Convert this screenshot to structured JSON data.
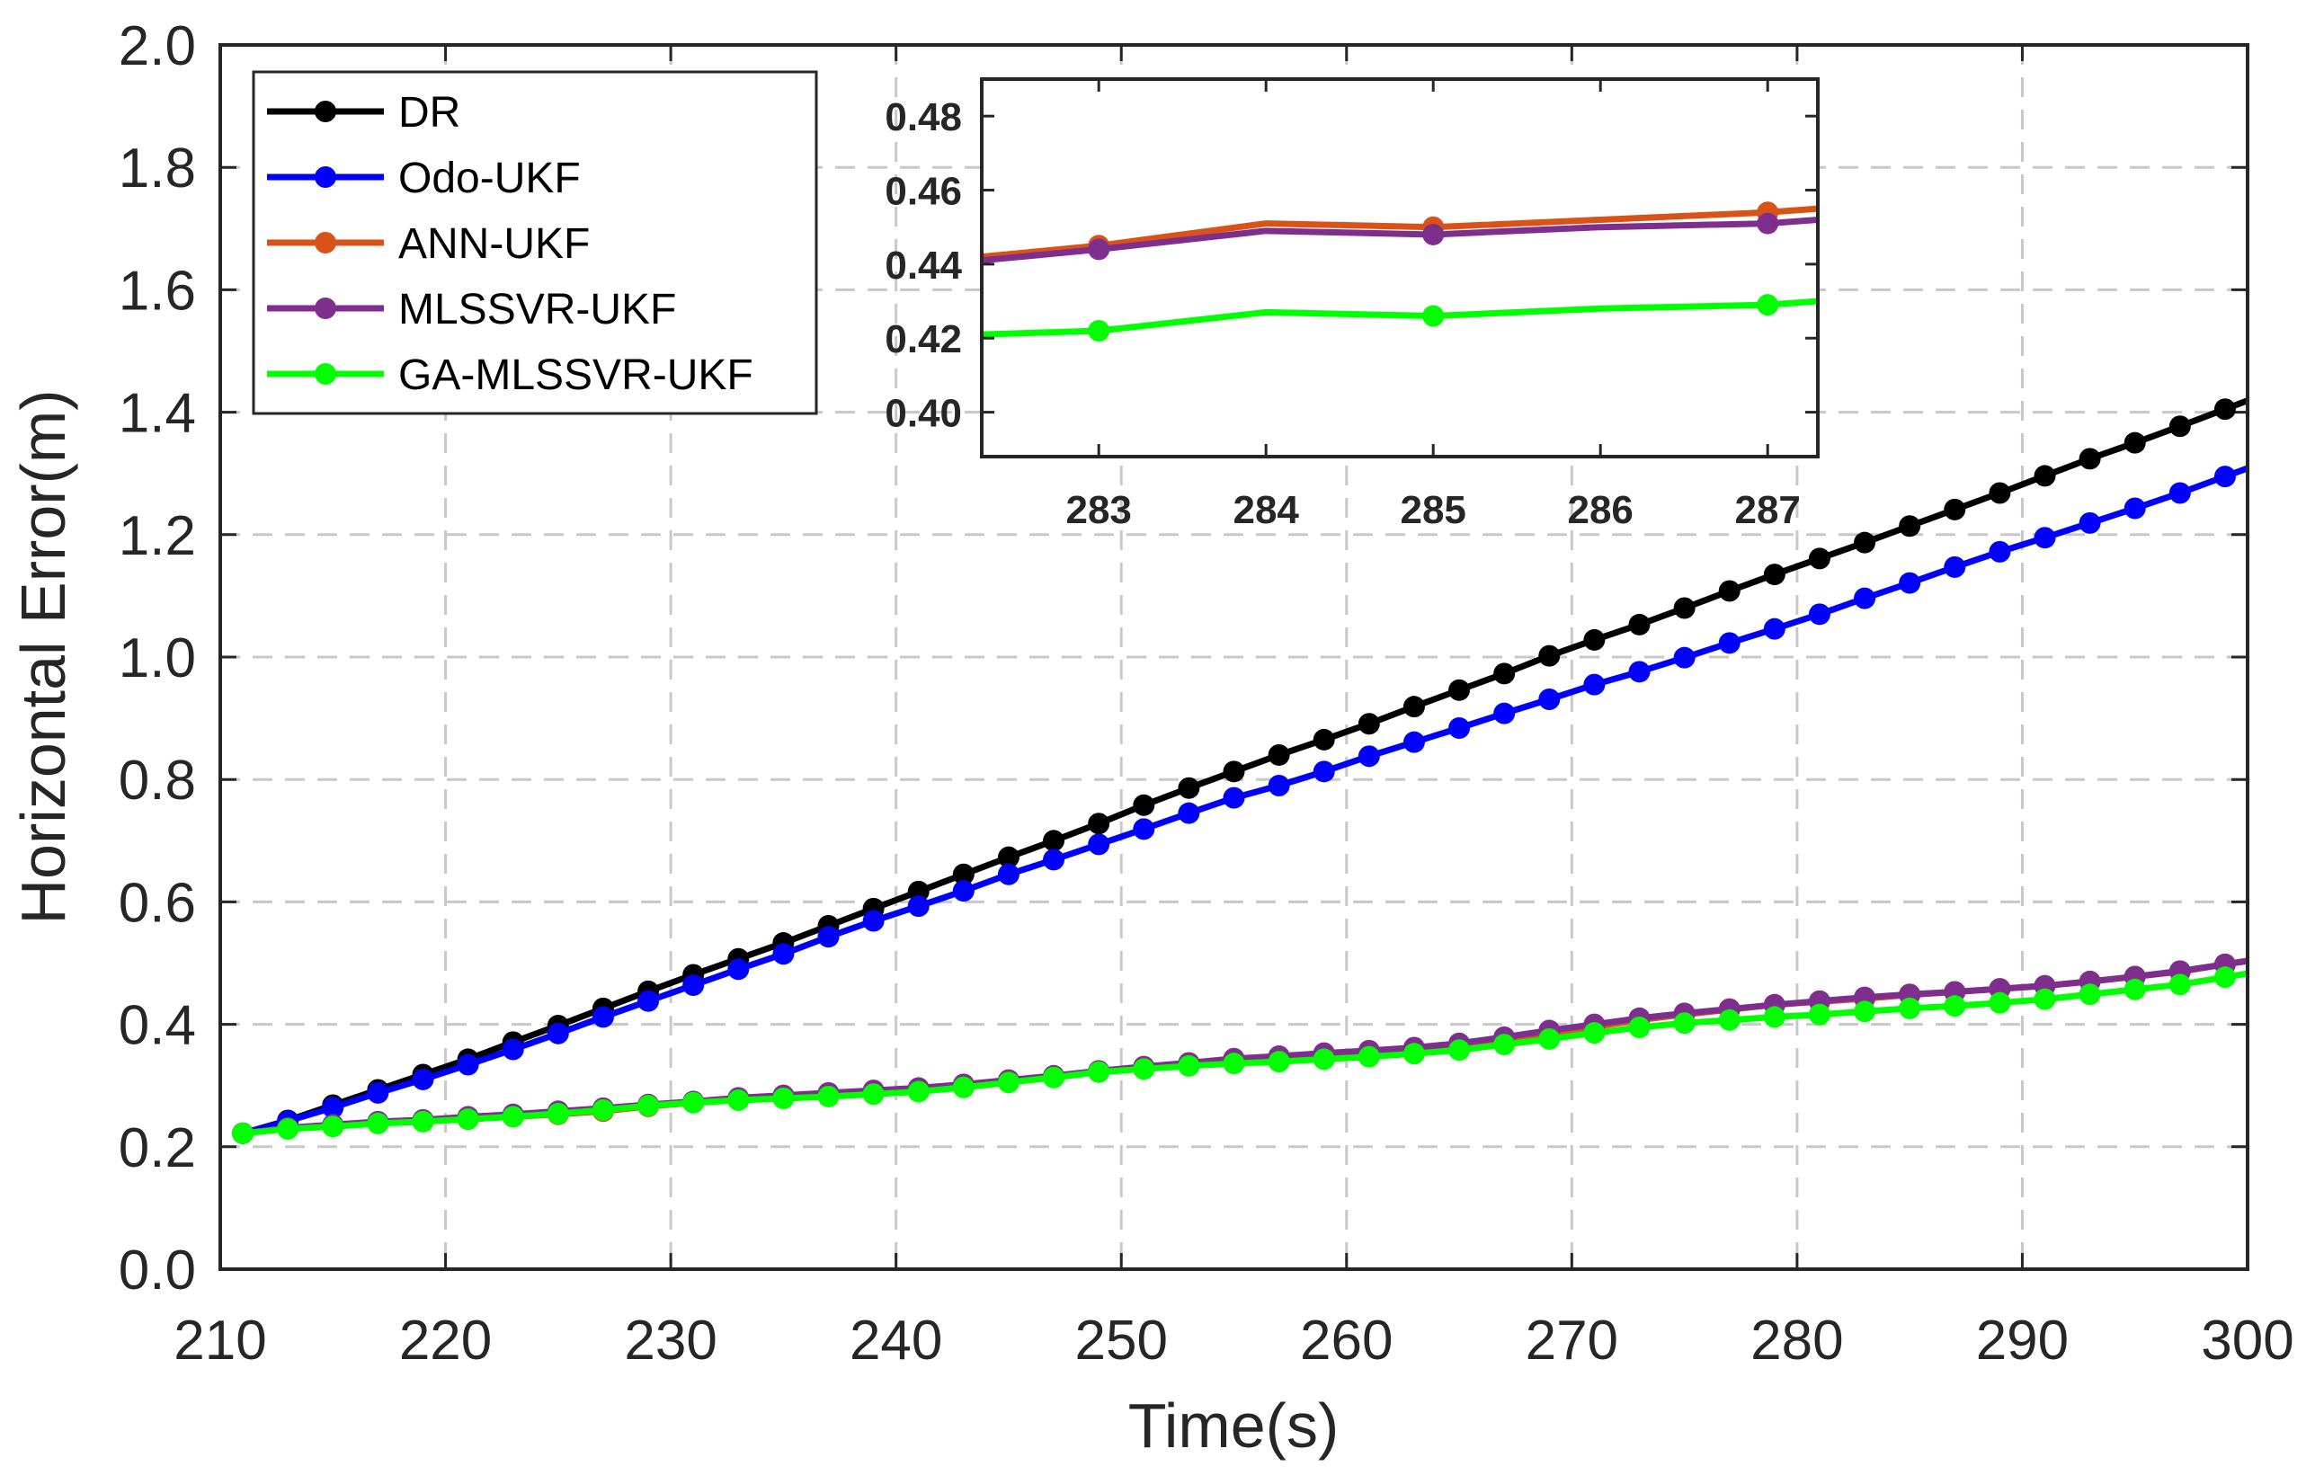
{
  "chart_data": {
    "type": "line",
    "title": "",
    "xlabel": "Time(s)",
    "ylabel": "Horizontal Error(m)",
    "xlim": [
      210,
      300
    ],
    "ylim": [
      0.0,
      2.0
    ],
    "xticks": [
      "210",
      "220",
      "230",
      "240",
      "250",
      "260",
      "270",
      "280",
      "290",
      "300"
    ],
    "yticks": [
      "0.0",
      "0.2",
      "0.4",
      "0.6",
      "0.8",
      "1.0",
      "1.2",
      "1.4",
      "1.6",
      "1.8",
      "2.0"
    ],
    "grid": true,
    "legend_position": "top-left",
    "x_start": 211,
    "x_step": 2,
    "series": [
      {
        "name": "DR",
        "color": "#000000",
        "values": [
          0.222,
          0.243,
          0.268,
          0.293,
          0.318,
          0.343,
          0.371,
          0.398,
          0.426,
          0.454,
          0.481,
          0.507,
          0.533,
          0.561,
          0.589,
          0.617,
          0.645,
          0.673,
          0.7,
          0.728,
          0.758,
          0.786,
          0.813,
          0.84,
          0.865,
          0.891,
          0.919,
          0.946,
          0.973,
          1.002,
          1.028,
          1.053,
          1.08,
          1.108,
          1.135,
          1.161,
          1.187,
          1.214,
          1.241,
          1.268,
          1.296,
          1.324,
          1.35,
          1.377,
          1.405
        ]
      },
      {
        "name": "Odo-UKF",
        "color": "#0000ff",
        "values": [
          0.222,
          0.242,
          0.264,
          0.288,
          0.31,
          0.334,
          0.359,
          0.385,
          0.412,
          0.438,
          0.464,
          0.49,
          0.515,
          0.543,
          0.569,
          0.593,
          0.618,
          0.645,
          0.669,
          0.694,
          0.719,
          0.745,
          0.77,
          0.79,
          0.813,
          0.838,
          0.861,
          0.884,
          0.908,
          0.931,
          0.955,
          0.976,
          0.999,
          1.023,
          1.046,
          1.07,
          1.096,
          1.121,
          1.147,
          1.172,
          1.195,
          1.219,
          1.243,
          1.268,
          1.295
        ]
      },
      {
        "name": "ANN-UKF",
        "color": "#d95319",
        "values": [
          0.222,
          0.23,
          0.235,
          0.24,
          0.242,
          0.245,
          0.249,
          0.253,
          0.258,
          0.266,
          0.272,
          0.278,
          0.283,
          0.286,
          0.29,
          0.294,
          0.3,
          0.308,
          0.314,
          0.322,
          0.328,
          0.336,
          0.342,
          0.346,
          0.35,
          0.354,
          0.358,
          0.364,
          0.374,
          0.385,
          0.396,
          0.407,
          0.416,
          0.424,
          0.432,
          0.437,
          0.442,
          0.448,
          0.453,
          0.458,
          0.463,
          0.47,
          0.478,
          0.486,
          0.498
        ]
      },
      {
        "name": "MLSSVR-UKF",
        "color": "#7e2f8e",
        "values": [
          0.222,
          0.231,
          0.236,
          0.241,
          0.244,
          0.249,
          0.253,
          0.258,
          0.263,
          0.269,
          0.274,
          0.28,
          0.284,
          0.288,
          0.292,
          0.296,
          0.302,
          0.309,
          0.316,
          0.324,
          0.331,
          0.337,
          0.344,
          0.348,
          0.353,
          0.357,
          0.362,
          0.369,
          0.379,
          0.39,
          0.4,
          0.41,
          0.418,
          0.425,
          0.432,
          0.438,
          0.444,
          0.449,
          0.453,
          0.458,
          0.463,
          0.47,
          0.478,
          0.487,
          0.498
        ]
      },
      {
        "name": "GA-MLSSVR-UKF",
        "color": "#00ff00",
        "values": [
          0.222,
          0.229,
          0.233,
          0.238,
          0.241,
          0.245,
          0.249,
          0.254,
          0.26,
          0.267,
          0.272,
          0.276,
          0.279,
          0.282,
          0.286,
          0.29,
          0.297,
          0.305,
          0.313,
          0.322,
          0.327,
          0.332,
          0.336,
          0.339,
          0.343,
          0.347,
          0.352,
          0.358,
          0.367,
          0.376,
          0.386,
          0.395,
          0.402,
          0.407,
          0.412,
          0.416,
          0.421,
          0.426,
          0.43,
          0.435,
          0.441,
          0.449,
          0.457,
          0.465,
          0.477
        ]
      }
    ],
    "inset": {
      "xlim": [
        282.3,
        287.3
      ],
      "ylim": [
        0.388,
        0.49
      ],
      "xticks": [
        "283",
        "284",
        "285",
        "286",
        "287"
      ],
      "yticks": [
        "0.40",
        "0.42",
        "0.44",
        "0.46",
        "0.48"
      ],
      "grid": false,
      "series": [
        {
          "name": "ANN-UKF",
          "color": "#d95319",
          "x": [
            282.3,
            283,
            284,
            285,
            286,
            287,
            287.3
          ],
          "values": [
            0.442,
            0.445,
            0.451,
            0.45,
            0.452,
            0.454,
            0.455
          ],
          "marker_x": [
            283,
            285,
            287
          ]
        },
        {
          "name": "MLSSVR-UKF",
          "color": "#7e2f8e",
          "x": [
            282.3,
            283,
            284,
            285,
            286,
            287,
            287.3
          ],
          "values": [
            0.441,
            0.444,
            0.449,
            0.448,
            0.45,
            0.451,
            0.452
          ],
          "marker_x": [
            283,
            285,
            287
          ]
        },
        {
          "name": "GA-MLSSVR-UKF",
          "color": "#00ff00",
          "x": [
            282.3,
            283,
            284,
            285,
            286,
            287,
            287.3
          ],
          "values": [
            0.421,
            0.422,
            0.427,
            0.426,
            0.428,
            0.429,
            0.43
          ],
          "marker_x": [
            283,
            285,
            287
          ]
        }
      ]
    }
  }
}
